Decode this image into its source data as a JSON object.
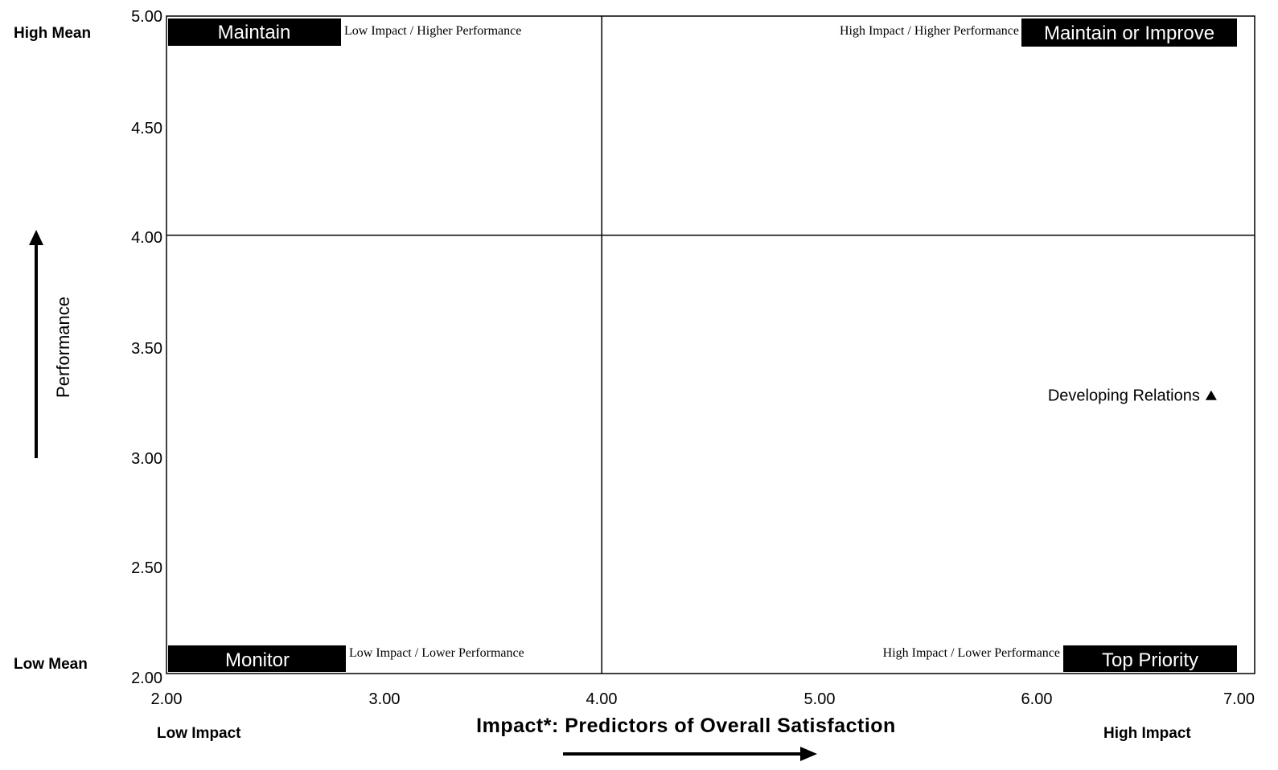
{
  "chart_data": {
    "type": "scatter",
    "title": "",
    "xlabel": "Impact*: Predictors of Overall Satisfaction",
    "ylabel": "Performance",
    "xlim": [
      2.0,
      7.0
    ],
    "ylim": [
      2.0,
      5.0
    ],
    "x_ticks": [
      "2.00",
      "3.00",
      "4.00",
      "5.00",
      "6.00",
      "7.00"
    ],
    "y_ticks": [
      "5.00",
      "4.50",
      "4.00",
      "3.50",
      "3.00",
      "2.50",
      "2.00"
    ],
    "x_divider": 4.0,
    "y_divider": 4.0,
    "grid": false,
    "corner_labels": {
      "high_mean": "High Mean",
      "low_mean": "Low Mean",
      "low_impact": "Low Impact",
      "high_impact": "High Impact"
    },
    "quadrants": {
      "top_left": {
        "label": "Maintain",
        "description": "Low Impact / Higher Performance"
      },
      "top_right": {
        "label": "Maintain or Improve",
        "description": "High Impact / Higher Performance"
      },
      "bottom_left": {
        "label": "Monitor",
        "description": "Low Impact / Lower Performance"
      },
      "bottom_right": {
        "label": "Top Priority",
        "description": "High Impact / Lower Performance"
      }
    },
    "points": [
      {
        "label": "Developing Relations",
        "x": 6.8,
        "y": 3.27,
        "marker": "triangle"
      }
    ]
  }
}
